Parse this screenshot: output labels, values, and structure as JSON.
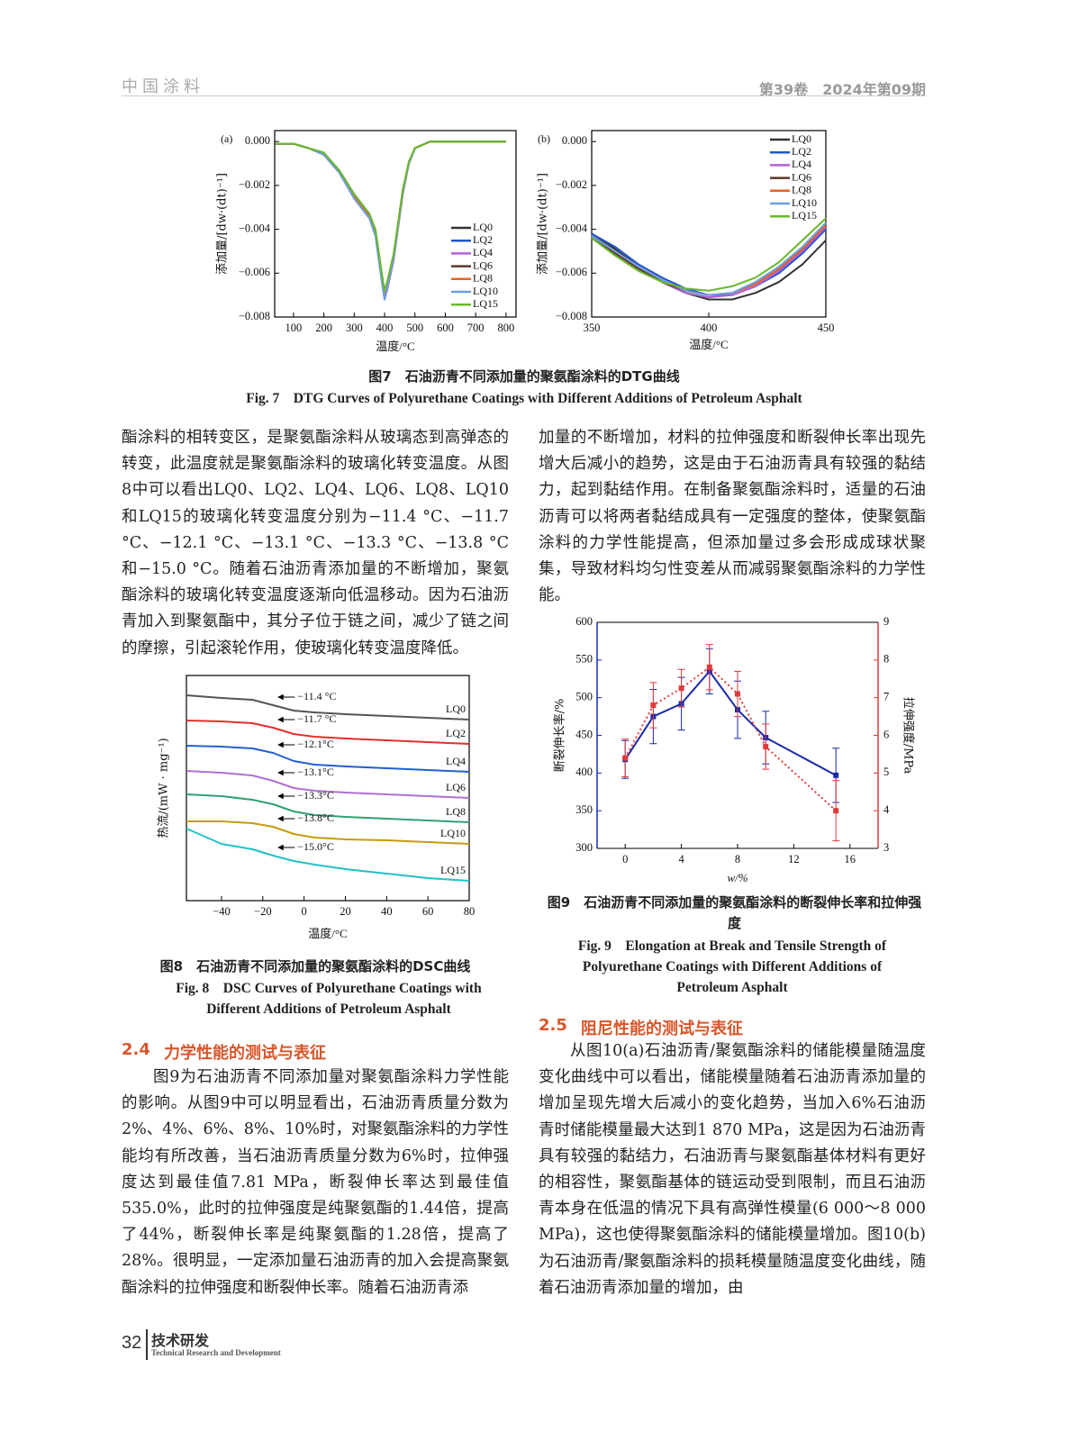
{
  "header": {
    "journal": "中国涂料",
    "issue": "第39卷　2024年第09期"
  },
  "chart_data": [
    {
      "type": "line",
      "panel_label": "(a)",
      "xlabel": "温度/°C",
      "ylabel": "添加量/[dw·(dt)⁻¹]",
      "xlim": [
        38,
        833
      ],
      "xticks": [
        100,
        200,
        300,
        400,
        500,
        600,
        700,
        800
      ],
      "ylim": [
        -0.008,
        0.0005
      ],
      "yticks": [
        {
          "value": 0,
          "label": "0.000"
        },
        {
          "value": -0.002,
          "label": "−0.002"
        },
        {
          "value": -0.004,
          "label": "−0.004"
        },
        {
          "value": -0.006,
          "label": "−0.006"
        },
        {
          "value": -0.008,
          "label": "−0.008"
        }
      ],
      "legend": "center right",
      "x": [
        40,
        100,
        150,
        200,
        250,
        300,
        350,
        370,
        390,
        400,
        410,
        430,
        460,
        480,
        500,
        550,
        600,
        700,
        800
      ],
      "series": [
        {
          "name": "LQ0",
          "color": "#333333",
          "values": [
            -0.0001,
            -0.0001,
            -0.0003,
            -0.0006,
            -0.0014,
            -0.0025,
            -0.0034,
            -0.0042,
            -0.0062,
            -0.0071,
            -0.0066,
            -0.0053,
            -0.0023,
            -0.001,
            -0.0003,
            0,
            0,
            0,
            0
          ]
        },
        {
          "name": "LQ2",
          "color": "#2255cc",
          "values": [
            -0.0001,
            -0.0001,
            -0.0003,
            -0.0006,
            -0.0014,
            -0.0025,
            -0.0034,
            -0.0042,
            -0.0061,
            -0.007,
            -0.0065,
            -0.0052,
            -0.0023,
            -0.001,
            -0.0003,
            0,
            0,
            0,
            0
          ]
        },
        {
          "name": "LQ4",
          "color": "#b060d8",
          "values": [
            -0.0001,
            -0.0001,
            -0.0003,
            -0.0006,
            -0.0014,
            -0.0026,
            -0.0035,
            -0.0043,
            -0.0063,
            -0.0072,
            -0.0067,
            -0.0054,
            -0.0024,
            -0.001,
            -0.0003,
            0,
            0,
            0,
            0
          ]
        },
        {
          "name": "LQ6",
          "color": "#5a3a2a",
          "values": [
            -0.0001,
            -0.0001,
            -0.0003,
            -0.0006,
            -0.0013,
            -0.0024,
            -0.0033,
            -0.0041,
            -0.006,
            -0.0069,
            -0.0064,
            -0.0052,
            -0.0022,
            -0.001,
            -0.0003,
            0,
            0,
            0,
            0
          ]
        },
        {
          "name": "LQ8",
          "color": "#f06020",
          "values": [
            -0.0001,
            -0.0001,
            -0.0003,
            -0.0006,
            -0.0014,
            -0.0025,
            -0.0034,
            -0.0042,
            -0.0061,
            -0.007,
            -0.0065,
            -0.0053,
            -0.0023,
            -0.001,
            -0.0003,
            0,
            0,
            0,
            0
          ]
        },
        {
          "name": "LQ10",
          "color": "#6aa0e0",
          "values": [
            -0.0001,
            -0.0001,
            -0.0003,
            -0.0006,
            -0.0014,
            -0.0026,
            -0.0035,
            -0.0043,
            -0.0063,
            -0.0072,
            -0.0066,
            -0.0053,
            -0.0023,
            -0.001,
            -0.0003,
            0,
            0,
            0,
            0
          ]
        },
        {
          "name": "LQ15",
          "color": "#6ab82a",
          "values": [
            -0.0001,
            -0.0001,
            -0.0003,
            -0.0005,
            -0.0013,
            -0.0024,
            -0.0033,
            -0.004,
            -0.0059,
            -0.0068,
            -0.0063,
            -0.0051,
            -0.0022,
            -0.0009,
            -0.0003,
            0,
            0,
            0,
            0
          ]
        }
      ]
    },
    {
      "type": "line",
      "panel_label": "(b)",
      "xlabel": "温度/°C",
      "ylabel": "添加量/[dw·(dt)⁻¹]",
      "xlim": [
        350,
        450
      ],
      "xticks": [
        350,
        400,
        450
      ],
      "ylim": [
        -0.008,
        0.0005
      ],
      "yticks": [
        {
          "value": 0,
          "label": "0.000"
        },
        {
          "value": -0.002,
          "label": "−0.002"
        },
        {
          "value": -0.004,
          "label": "−0.004"
        },
        {
          "value": -0.006,
          "label": "−0.006"
        },
        {
          "value": -0.008,
          "label": "−0.008"
        }
      ],
      "legend": "upper right",
      "x": [
        350,
        360,
        370,
        380,
        390,
        400,
        410,
        420,
        430,
        440,
        450
      ],
      "series": [
        {
          "name": "LQ0",
          "color": "#333333",
          "values": [
            -0.0042,
            -0.0049,
            -0.0057,
            -0.0064,
            -0.0069,
            -0.0072,
            -0.0072,
            -0.0069,
            -0.0064,
            -0.0056,
            -0.0045
          ]
        },
        {
          "name": "LQ2",
          "color": "#2255cc",
          "values": [
            -0.0042,
            -0.0048,
            -0.0056,
            -0.0062,
            -0.0067,
            -0.007,
            -0.007,
            -0.0066,
            -0.006,
            -0.0051,
            -0.004
          ]
        },
        {
          "name": "LQ4",
          "color": "#b060d8",
          "values": [
            -0.0043,
            -0.005,
            -0.0058,
            -0.0064,
            -0.0069,
            -0.0071,
            -0.007,
            -0.0066,
            -0.0059,
            -0.005,
            -0.0039
          ]
        },
        {
          "name": "LQ6",
          "color": "#5a3a2a",
          "values": [
            -0.0044,
            -0.0051,
            -0.0058,
            -0.0064,
            -0.0068,
            -0.007,
            -0.0069,
            -0.0065,
            -0.0058,
            -0.0049,
            -0.0038
          ]
        },
        {
          "name": "LQ8",
          "color": "#f06020",
          "values": [
            -0.0043,
            -0.005,
            -0.0057,
            -0.0063,
            -0.0068,
            -0.007,
            -0.0069,
            -0.0065,
            -0.0058,
            -0.0049,
            -0.0038
          ]
        },
        {
          "name": "LQ10",
          "color": "#6aa0e0",
          "values": [
            -0.0043,
            -0.005,
            -0.0057,
            -0.0063,
            -0.0068,
            -0.007,
            -0.0069,
            -0.0064,
            -0.0057,
            -0.0048,
            -0.0037
          ]
        },
        {
          "name": "LQ15",
          "color": "#6ab82a",
          "values": [
            -0.0044,
            -0.0052,
            -0.0059,
            -0.0064,
            -0.0067,
            -0.0068,
            -0.0066,
            -0.0062,
            -0.0055,
            -0.0045,
            -0.0035
          ]
        }
      ]
    },
    {
      "type": "line",
      "xlabel": "温度/°C",
      "ylabel": "热流/(mW · mg⁻¹)",
      "xlim": [
        -57,
        80
      ],
      "xticks": [
        {
          "value": -40,
          "label": "−40"
        },
        {
          "value": -20,
          "label": "−20"
        },
        0,
        20,
        40,
        60,
        80
      ],
      "ylim": [
        0,
        10
      ],
      "x": [
        -57,
        -40,
        -25,
        -15,
        -5,
        5,
        20,
        40,
        60,
        80
      ],
      "series": [
        {
          "name": "LQ0",
          "color": "#555555",
          "annotation": "−11.4 °C",
          "values": [
            9.12,
            9.0,
            8.92,
            8.68,
            8.44,
            8.36,
            8.28,
            8.2,
            8.12,
            8.04
          ]
        },
        {
          "name": "LQ2",
          "color": "#e0302a",
          "annotation": "−11.7 °C",
          "values": [
            8.0,
            7.96,
            7.88,
            7.68,
            7.4,
            7.28,
            7.2,
            7.12,
            7.04,
            6.96
          ]
        },
        {
          "name": "LQ4",
          "color": "#2060d0",
          "annotation": "−12.1°C",
          "values": [
            6.88,
            6.84,
            6.76,
            6.56,
            6.2,
            6.04,
            5.96,
            5.88,
            5.8,
            5.72
          ]
        },
        {
          "name": "LQ6",
          "color": "#b070d0",
          "annotation": "−13.1°C",
          "values": [
            5.76,
            5.68,
            5.56,
            5.32,
            5.0,
            4.88,
            4.8,
            4.72,
            4.64,
            4.56
          ]
        },
        {
          "name": "LQ8",
          "color": "#30a070",
          "annotation": "−13.3°C",
          "values": [
            4.72,
            4.64,
            4.48,
            4.28,
            3.96,
            3.8,
            3.72,
            3.64,
            3.56,
            3.48
          ]
        },
        {
          "name": "LQ10",
          "color": "#c89a10",
          "annotation": "−13.8°C",
          "values": [
            3.52,
            3.52,
            3.44,
            3.28,
            2.96,
            2.8,
            2.72,
            2.68,
            2.6,
            2.52
          ]
        },
        {
          "name": "LQ15",
          "color": "#20c0c8",
          "annotation": "−15.0°C",
          "values": [
            3.2,
            2.52,
            2.28,
            2.0,
            1.76,
            1.6,
            1.4,
            1.2,
            1.0,
            0.88
          ]
        }
      ]
    },
    {
      "type": "line",
      "xlabel": "w/%",
      "ylabel": "断裂伸长率/%",
      "y2label": "拉伸强度/MPa",
      "xlim": [
        -2,
        18
      ],
      "xticks": [
        0,
        4,
        8,
        12,
        16
      ],
      "ylim": [
        300,
        600
      ],
      "yticks": [
        300,
        350,
        400,
        450,
        500,
        550,
        600
      ],
      "y2lim": [
        3,
        9
      ],
      "y2ticks": [
        3,
        4,
        5,
        6,
        7,
        8,
        9
      ],
      "x": [
        0,
        2,
        4,
        6,
        8,
        10,
        15
      ],
      "series": [
        {
          "color": "#1a2aa8",
          "line_style": "solid",
          "values": [
            418,
            475,
            492,
            535,
            484,
            447,
            397
          ],
          "errors": [
            25,
            36,
            35,
            30,
            38,
            35,
            36
          ]
        },
        {
          "color": "#e03a3a",
          "line_style": "dotted",
          "axis": "y2",
          "values": [
            5.4,
            6.8,
            7.25,
            7.81,
            7.1,
            5.7,
            4.0
          ],
          "errors": [
            0.5,
            0.6,
            0.5,
            0.6,
            0.6,
            0.6,
            0.8
          ]
        }
      ]
    }
  ],
  "captions": [
    {
      "cn": "图7　石油沥青不同添加量的聚氨酯涂料的DTG曲线",
      "en": "Fig. 7　DTG Curves of Polyurethane Coatings with Different Additions of Petroleum Asphalt"
    },
    {
      "cn": "图8　石油沥青不同添加量的聚氨酯涂料的DSC曲线",
      "en": "Fig. 8　DSC Curves of Polyurethane Coatings with Different Additions of Petroleum Asphalt"
    },
    {
      "cn": "图9　石油沥青不同添加量的聚氨酯涂料的断裂伸长率和拉伸强度",
      "en": "Fig. 9　Elongation at Break and Tensile Strength of Polyurethane Coatings with Different Additions of Petroleum Asphalt"
    }
  ],
  "paragraphs": [
    "酯涂料的相转变区，是聚氨酯涂料从玻璃态到高弹态的转变，此温度就是聚氨酯涂料的玻璃化转变温度。从图8中可以看出LQ0、LQ2、LQ4、LQ6、LQ8、LQ10和LQ15的玻璃化转变温度分别为−11.4 °C、−11.7 °C、−12.1 °C、−13.1 °C、−13.3 °C、−13.8 °C和−15.0 °C。随着石油沥青添加量的不断增加，聚氨酯涂料的玻璃化转变温度逐渐向低温移动。因为石油沥青加入到聚氨酯中，其分子位于链之间，减少了链之间的摩擦，引起滚轮作用，使玻璃化转变温度降低。",
    "加量的不断增加，材料的拉伸强度和断裂伸长率出现先增大后减小的趋势，这是由于石油沥青具有较强的黏结力，起到黏结作用。在制备聚氨酯涂料时，适量的石油沥青可以将两者黏结成具有一定强度的整体，使聚氨酯涂料的力学性能提高，但添加量过多会形成成球状聚集，导致材料均匀性变差从而减弱聚氨酯涂料的力学性能。",
    "图9为石油沥青不同添加量对聚氨酯涂料力学性能的影响。从图9中可以明显看出，石油沥青质量分数为2%、4%、6%、8%、10%时，对聚氨酯涂料的力学性能均有所改善，当石油沥青质量分数为6%时，拉伸强度达到最佳值7.81 MPa，断裂伸长率达到最佳值535.0%，此时的拉伸强度是纯聚氨酯的1.44倍，提高了44%，断裂伸长率是纯聚氨酯的1.28倍，提高了28%。很明显，一定添加量石油沥青的加入会提高聚氨酯涂料的拉伸强度和断裂伸长率。随着石油沥青添",
    "从图10(a)石油沥青/聚氨酯涂料的储能模量随温度变化曲线中可以看出，储能模量随着石油沥青添加量的增加呈现先增大后减小的变化趋势，当加入6%石油沥青时储能模量最大达到1 870 MPa，这是因为石油沥青具有较强的黏结力，石油沥青与聚氨酯基体材料有更好的相容性，聚氨酯基体的链运动受到限制，而且石油沥青本身在低温的情况下具有高弹性模量(6 000～8 000 MPa)，这也使得聚氨酯涂料的储能模量增加。图10(b)为石油沥青/聚氨酯涂料的损耗模量随温度变化曲线，随着石油沥青添加量的增加，由"
  ],
  "sections": [
    {
      "number": "2.4",
      "title": "力学性能的测试与表征"
    },
    {
      "number": "2.5",
      "title": "阻尼性能的测试与表征"
    }
  ],
  "footer": {
    "page": "32",
    "section": "技术研发",
    "section_en": "Technical Research and Development"
  }
}
